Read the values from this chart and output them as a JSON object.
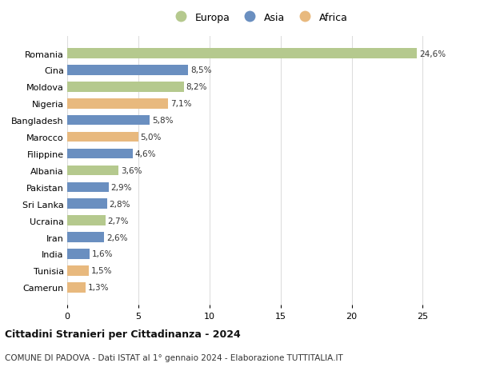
{
  "categories": [
    "Romania",
    "Cina",
    "Moldova",
    "Nigeria",
    "Bangladesh",
    "Marocco",
    "Filippine",
    "Albania",
    "Pakistan",
    "Sri Lanka",
    "Ucraina",
    "Iran",
    "India",
    "Tunisia",
    "Camerun"
  ],
  "values": [
    24.6,
    8.5,
    8.2,
    7.1,
    5.8,
    5.0,
    4.6,
    3.6,
    2.9,
    2.8,
    2.7,
    2.6,
    1.6,
    1.5,
    1.3
  ],
  "continents": [
    "Europa",
    "Asia",
    "Europa",
    "Africa",
    "Asia",
    "Africa",
    "Asia",
    "Europa",
    "Asia",
    "Asia",
    "Europa",
    "Asia",
    "Asia",
    "Africa",
    "Africa"
  ],
  "colors": {
    "Europa": "#b5c98e",
    "Asia": "#6a8fc0",
    "Africa": "#e8b97e"
  },
  "legend_order": [
    "Europa",
    "Asia",
    "Africa"
  ],
  "title1": "Cittadini Stranieri per Cittadinanza - 2024",
  "title2": "COMUNE DI PADOVA - Dati ISTAT al 1° gennaio 2024 - Elaborazione TUTTITALIA.IT",
  "xlim": [
    0,
    27
  ],
  "xticks": [
    0,
    5,
    10,
    15,
    20,
    25
  ],
  "background_color": "#ffffff",
  "grid_color": "#dddddd",
  "bar_height": 0.6
}
